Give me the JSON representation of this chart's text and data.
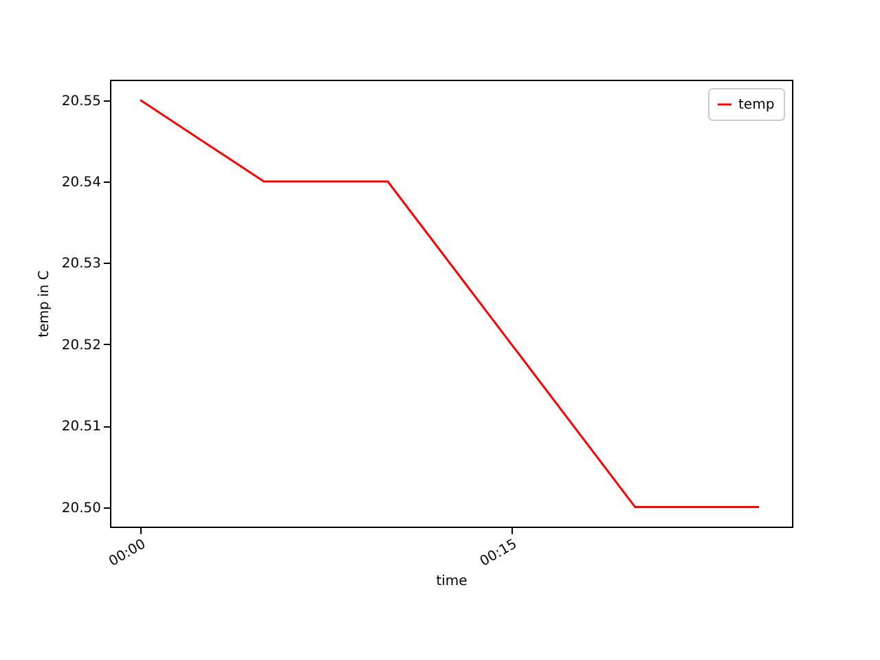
{
  "chart_data": {
    "type": "line",
    "xlabel": "time",
    "ylabel": "temp in C",
    "x": [
      0,
      0.0833,
      0.1667,
      0.25,
      0.3333,
      0.4167
    ],
    "series": [
      {
        "name": "temp",
        "color": "#ff0000",
        "values": [
          20.55,
          20.54,
          20.54,
          20.52,
          20.5,
          20.5
        ]
      }
    ],
    "xlim": [
      -0.0204,
      0.4389
    ],
    "xticks": [
      {
        "value": 0,
        "label": "00:00"
      },
      {
        "value": 0.25,
        "label": "00:15"
      }
    ],
    "ylim": [
      20.4976,
      20.5525
    ],
    "yticks": [
      {
        "value": 20.5,
        "label": "20.50"
      },
      20.51,
      20.52,
      20.53,
      20.54,
      20.55
    ],
    "grid": false,
    "legend": "top right",
    "marker": "none",
    "line_style": "solid"
  }
}
